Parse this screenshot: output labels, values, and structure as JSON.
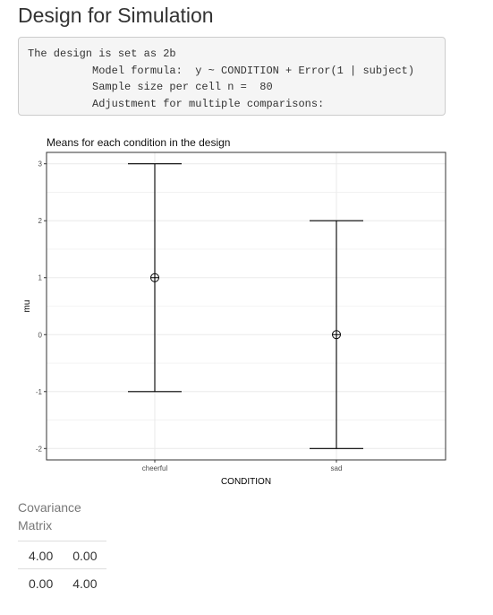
{
  "page": {
    "title": "Design for Simulation"
  },
  "design_output": {
    "lines": [
      "The design is set as 2b",
      "          Model formula:  y ~ CONDITION + Error(1 | subject)",
      "          Sample size per cell n =  80",
      "          Adjustment for multiple comparisons:"
    ]
  },
  "chart_data": {
    "type": "scatter",
    "title": "Means for each condition in the design",
    "xlabel": "CONDITION",
    "ylabel": "mu",
    "categories": [
      "cheerful",
      "sad"
    ],
    "series": [
      {
        "values": [
          1,
          0
        ],
        "error_low": [
          -1,
          -2
        ],
        "error_high": [
          3,
          2
        ]
      }
    ],
    "ylim": [
      -2.2,
      3.2
    ],
    "yticks": [
      -2,
      -1,
      0,
      1,
      2,
      3
    ],
    "grid": true,
    "colors": {
      "panel_border": "#333333",
      "grid": "#ebebeb",
      "marks": "#000000"
    }
  },
  "covariance": {
    "title": "Covariance Matrix",
    "rows": [
      [
        "4.00",
        "0.00"
      ],
      [
        "0.00",
        "4.00"
      ]
    ]
  }
}
